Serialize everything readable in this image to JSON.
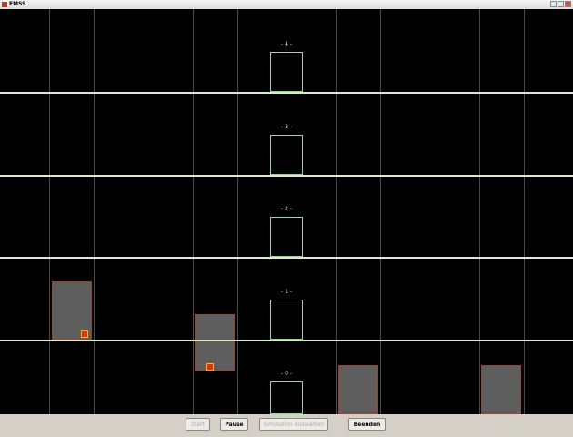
{
  "window": {
    "title": "EMSS"
  },
  "floors": [
    {
      "label": "- 4 -"
    },
    {
      "label": "- 3 -"
    },
    {
      "label": "- 2 -"
    },
    {
      "label": "- 1 -"
    },
    {
      "label": "- 0 -"
    }
  ],
  "buttons": [
    {
      "label": "Start",
      "enabled": false
    },
    {
      "label": "Pause",
      "enabled": true
    },
    {
      "label": "Simulation Auswählen",
      "enabled": false
    },
    {
      "label": "Beenden",
      "enabled": true
    }
  ]
}
